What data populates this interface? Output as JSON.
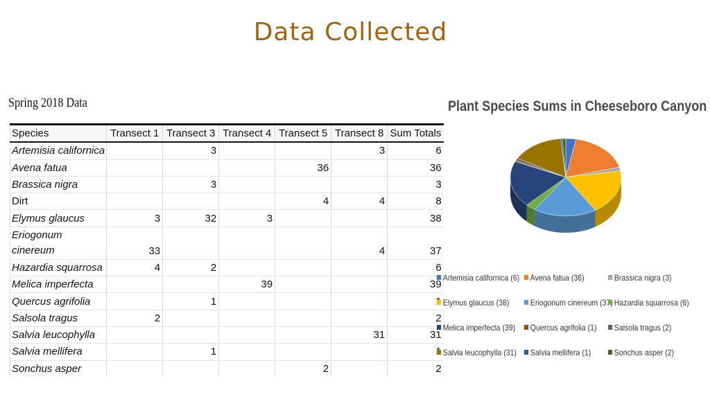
{
  "slide": {
    "title": "Data Collected"
  },
  "table": {
    "caption": "Spring 2018 Data",
    "columns": [
      "Species",
      "Transect 1",
      "Transect 3",
      "Transect 4",
      "Transect 5",
      "Transect 8",
      "Sum Totals"
    ],
    "rows": [
      {
        "species": "Artemisia californica",
        "italic": true,
        "values": [
          "",
          "3",
          "",
          "",
          "3",
          "6"
        ]
      },
      {
        "species": "Avena fatua",
        "italic": true,
        "values": [
          "",
          "",
          "",
          "36",
          "",
          "36"
        ]
      },
      {
        "species": "Brassica nigra",
        "italic": true,
        "values": [
          "",
          "3",
          "",
          "",
          "",
          "3"
        ]
      },
      {
        "species": "Dirt",
        "italic": false,
        "values": [
          "",
          "",
          "",
          "4",
          "4",
          "8"
        ]
      },
      {
        "species": "Elymus glaucus",
        "italic": true,
        "values": [
          "3",
          "32",
          "3",
          "",
          "",
          "38"
        ]
      },
      {
        "species": "Eriogonum cinereum",
        "italic": true,
        "values": [
          "33",
          "",
          "",
          "",
          "4",
          "37"
        ]
      },
      {
        "species": "Hazardia squarrosa",
        "italic": true,
        "values": [
          "4",
          "2",
          "",
          "",
          "",
          "6"
        ]
      },
      {
        "species": "Melica imperfecta",
        "italic": true,
        "values": [
          "",
          "",
          "39",
          "",
          "",
          "39"
        ]
      },
      {
        "species": "Quercus agrifolia",
        "italic": true,
        "values": [
          "",
          "1",
          "",
          "",
          "",
          "1"
        ]
      },
      {
        "species": "Salsola tragus",
        "italic": true,
        "values": [
          "2",
          "",
          "",
          "",
          "",
          "2"
        ]
      },
      {
        "species": "Salvia leucophylla",
        "italic": true,
        "values": [
          "",
          "",
          "",
          "",
          "31",
          "31"
        ]
      },
      {
        "species": "Salvia mellifera",
        "italic": true,
        "values": [
          "",
          "1",
          "",
          "",
          "",
          "1"
        ]
      },
      {
        "species": "Sonchus asper",
        "italic": true,
        "values": [
          "",
          "",
          "",
          "2",
          "",
          "2"
        ]
      }
    ]
  },
  "chart_data": {
    "type": "pie",
    "title": "Plant Species Sums in Cheeseboro Canyon",
    "legend": "bottom",
    "series": [
      {
        "name": "Artemisia californica (6)",
        "value": 6,
        "color": "#4472c4"
      },
      {
        "name": "Avena fatua (36)",
        "value": 36,
        "color": "#ed7d31"
      },
      {
        "name": "Brassica nigra (3)",
        "value": 3,
        "color": "#a5a5a5"
      },
      {
        "name": "Elymus glaucus (38)",
        "value": 38,
        "color": "#ffc000"
      },
      {
        "name": "Eriogonum cinereum (37)",
        "value": 37,
        "color": "#5b9bd5"
      },
      {
        "name": "Hazardia squarrosa (6)",
        "value": 6,
        "color": "#70ad47"
      },
      {
        "name": "Melica imperfecta (39)",
        "value": 39,
        "color": "#264478"
      },
      {
        "name": "Quercus agrifolia (1)",
        "value": 1,
        "color": "#9e480e"
      },
      {
        "name": "Salsola tragus (2)",
        "value": 2,
        "color": "#636363"
      },
      {
        "name": "Salvia leucophylla (31)",
        "value": 31,
        "color": "#997300"
      },
      {
        "name": "Salvia mellifera (1)",
        "value": 1,
        "color": "#255e91"
      },
      {
        "name": "Sonchus asper (2)",
        "value": 2,
        "color": "#43682b"
      }
    ]
  }
}
